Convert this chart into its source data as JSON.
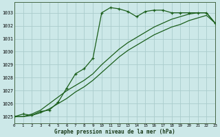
{
  "title": "Graphe pression niveau de la mer (hPa)",
  "background_color": "#cce8e8",
  "grid_color": "#aacccc",
  "line_color": "#1a5e1a",
  "xlim": [
    0,
    23
  ],
  "ylim": [
    1024.5,
    1033.8
  ],
  "yticks": [
    1025,
    1026,
    1027,
    1028,
    1029,
    1030,
    1031,
    1032,
    1033
  ],
  "xticks": [
    0,
    1,
    2,
    3,
    4,
    5,
    6,
    7,
    8,
    9,
    10,
    11,
    12,
    13,
    14,
    15,
    16,
    17,
    18,
    19,
    20,
    21,
    22,
    23
  ],
  "series1_x": [
    0,
    1,
    2,
    3,
    4,
    5,
    6,
    7,
    8,
    9,
    10,
    11,
    12,
    13,
    14,
    15,
    16,
    17,
    18,
    19,
    20,
    21,
    22,
    23
  ],
  "series1_y": [
    1025.0,
    1025.2,
    1025.1,
    1025.4,
    1025.5,
    1026.1,
    1027.2,
    1028.3,
    1028.7,
    1029.5,
    1033.0,
    1033.4,
    1033.3,
    1033.1,
    1032.7,
    1033.1,
    1033.2,
    1033.2,
    1033.0,
    1033.0,
    1033.0,
    1033.0,
    1033.0,
    1032.2
  ],
  "series2_x": [
    0,
    1,
    2,
    3,
    4,
    5,
    6,
    7,
    8,
    9,
    10,
    11,
    12,
    13,
    14,
    15,
    16,
    17,
    18,
    19,
    20,
    21,
    22,
    23
  ],
  "series2_y": [
    1025.0,
    1025.0,
    1025.1,
    1025.3,
    1025.6,
    1026.0,
    1026.4,
    1026.9,
    1027.3,
    1027.8,
    1028.4,
    1029.0,
    1029.6,
    1030.1,
    1030.5,
    1030.9,
    1031.3,
    1031.6,
    1031.9,
    1032.1,
    1032.4,
    1032.6,
    1032.8,
    1032.2
  ],
  "series3_x": [
    0,
    1,
    2,
    3,
    4,
    5,
    6,
    7,
    8,
    9,
    10,
    11,
    12,
    13,
    14,
    15,
    16,
    17,
    18,
    19,
    20,
    21,
    22,
    23
  ],
  "series3_y": [
    1025.0,
    1025.0,
    1025.2,
    1025.5,
    1026.0,
    1026.5,
    1027.0,
    1027.4,
    1027.8,
    1028.3,
    1029.0,
    1029.6,
    1030.2,
    1030.7,
    1031.1,
    1031.5,
    1031.9,
    1032.2,
    1032.5,
    1032.7,
    1032.9,
    1033.0,
    1033.0,
    1032.2
  ]
}
